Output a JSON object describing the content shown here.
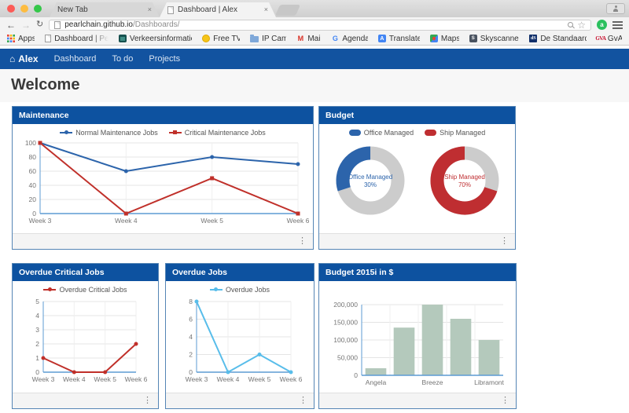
{
  "icons": {
    "close": "×",
    "back": "←",
    "forward": "→",
    "refresh": "↻",
    "star": "☆",
    "home": "⌂",
    "kebab": "⋮",
    "ext_letter": "a",
    "gmail_letter": "M",
    "google_letter": "G",
    "translate_letter": "A",
    "skyscanner_letter": "S",
    "ds_letters": "dS",
    "gva_letters": "GVA"
  },
  "browser": {
    "tabs": [
      {
        "label": "New Tab"
      },
      {
        "label": "Dashboard | Alex"
      }
    ],
    "url": {
      "host": "pearlchain.github.io",
      "path": "/Dashboards/"
    },
    "bookmarks": [
      {
        "label": "Apps",
        "icon": "apps-grid-icon"
      },
      {
        "label": "Dashboard | PearlCh",
        "icon": "page-icon"
      },
      {
        "label": "Verkeersinformatie",
        "icon": "tv-icon"
      },
      {
        "label": "Free TV",
        "icon": "yellow-circle-icon"
      },
      {
        "label": "IP Cam",
        "icon": "folder-icon"
      },
      {
        "label": "Mail",
        "icon": "gmail-icon"
      },
      {
        "label": "Agenda",
        "icon": "google-g-icon"
      },
      {
        "label": "Translate",
        "icon": "translate-icon"
      },
      {
        "label": "Maps",
        "icon": "maps-icon"
      },
      {
        "label": "Skyscanner",
        "icon": "skyscanner-icon"
      },
      {
        "label": "De Standaard",
        "icon": "de-standaard-icon"
      },
      {
        "label": "GvA",
        "icon": "gva-icon"
      }
    ]
  },
  "navbar": {
    "brand": "Alex",
    "items": [
      {
        "label": "Dashboard"
      },
      {
        "label": "To do"
      },
      {
        "label": "Projects"
      }
    ]
  },
  "page": {
    "heading": "Welcome"
  },
  "panels": {
    "maintenance": {
      "title": "Maintenance"
    },
    "budget": {
      "title": "Budget"
    },
    "overdue_critical": {
      "title": "Overdue Critical Jobs"
    },
    "overdue": {
      "title": "Overdue Jobs"
    },
    "budget2015": {
      "title": "Budget 2015i in $"
    }
  },
  "colors": {
    "navbar": "#1253a0",
    "panel_header": "#0d52a0",
    "panel_border": "#5585b5",
    "series_blue": "#2c64ab",
    "series_red": "#c0302a",
    "series_lightblue": "#58bdea",
    "bar_green": "#b4c9bc",
    "donut_track": "#cccccc",
    "axis_blue": "#5d9bd3",
    "gridline": "#e4e4e4"
  },
  "chart_data": [
    {
      "id": "maintenance",
      "type": "line",
      "x": [
        "Week 3",
        "Week 4",
        "Week 5",
        "Week 6"
      ],
      "yticks": [
        0,
        20,
        40,
        60,
        80,
        100
      ],
      "ylim": [
        0,
        100
      ],
      "grid": true,
      "legend_position": "top",
      "series": [
        {
          "name": "Normal Maintenance Jobs",
          "color": "#2c64ab",
          "marker": "circle",
          "values": [
            100,
            60,
            80,
            70
          ]
        },
        {
          "name": "Critical Maintenance Jobs",
          "color": "#c0302a",
          "marker": "square",
          "values": [
            100,
            0,
            50,
            0
          ]
        }
      ],
      "ml": 30,
      "mr": 14
    },
    {
      "id": "budget",
      "type": "pie",
      "donut": true,
      "legend_position": "top",
      "track_color": "#cccccc",
      "slices": [
        {
          "label": "Office Managed",
          "pct": 30,
          "color": "#2c64ab"
        },
        {
          "label": "Ship Managed",
          "pct": 70,
          "color": "#bf2e31"
        }
      ]
    },
    {
      "id": "overdue_critical",
      "type": "line",
      "x": [
        "Week 3",
        "Week 4",
        "Week 5",
        "Week 6"
      ],
      "yticks": [
        0,
        1,
        2,
        3,
        4,
        5
      ],
      "ylim": [
        0,
        5
      ],
      "grid": true,
      "legend_position": "top",
      "series": [
        {
          "name": "Overdue Critical Jobs",
          "color": "#c0302a",
          "marker": "circle",
          "values": [
            1,
            0,
            0,
            2
          ]
        }
      ],
      "ml": 30,
      "mr": 20
    },
    {
      "id": "overdue",
      "type": "line",
      "x": [
        "Week 3",
        "Week 4",
        "Week 5",
        "Week 6"
      ],
      "yticks": [
        0,
        2,
        4,
        6,
        8
      ],
      "ylim": [
        0,
        8
      ],
      "grid": true,
      "legend_position": "top",
      "series": [
        {
          "name": "Overdue Jobs",
          "color": "#58bdea",
          "marker": "circle",
          "values": [
            8,
            0,
            2,
            0
          ]
        }
      ],
      "ml": 30,
      "mr": 20
    },
    {
      "id": "budget2015",
      "type": "bar",
      "categories": [
        "Angela",
        "",
        "Breeze",
        "",
        "Libramont"
      ],
      "values": [
        20000,
        135000,
        200000,
        160000,
        100000
      ],
      "yticks": [
        0,
        50000,
        100000,
        150000,
        200000
      ],
      "yticklabels": [
        "0",
        "50,000",
        "100,000",
        "150,000",
        "200,000"
      ],
      "ylim": [
        0,
        200000
      ],
      "grid": true,
      "legend_position": "none",
      "bar_color": "#b4c9bc",
      "ml": 48,
      "mr": 10
    }
  ]
}
